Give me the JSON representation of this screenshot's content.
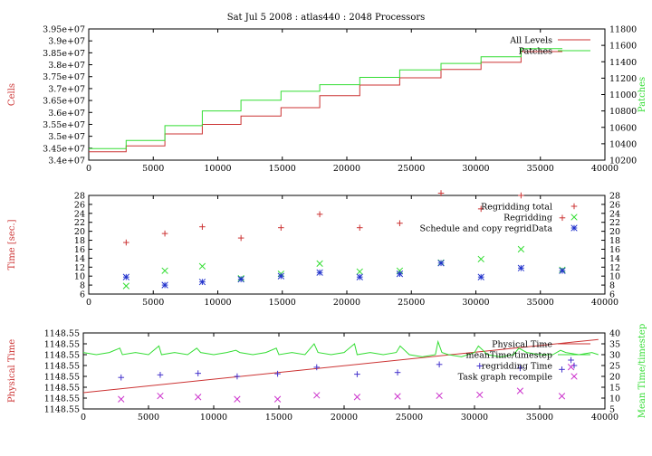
{
  "title": "Sat Jul 5 2008 : atlas440 : 2048 Processors",
  "colors": {
    "red": "#cc3333",
    "green": "#33dd33",
    "blue": "#2233cc",
    "magenta": "#cc33cc",
    "purple": "#4433cc",
    "grid": "#888888"
  },
  "chart_data": [
    {
      "type": "line",
      "id": "cells",
      "xlim": [
        0,
        40000
      ],
      "xticks": [
        0,
        5000,
        10000,
        15000,
        20000,
        25000,
        30000,
        35000,
        40000
      ],
      "ylabel": "Cells",
      "ylim": [
        34000000,
        39500000
      ],
      "yticks": [
        "3.4e+07",
        "3.45e+07",
        "3.5e+07",
        "3.55e+07",
        "3.6e+07",
        "3.65e+07",
        "3.7e+07",
        "3.75e+07",
        "3.8e+07",
        "3.85e+07",
        "3.9e+07",
        "3.95e+07"
      ],
      "y2label": "Patches",
      "y2lim": [
        10200,
        11800
      ],
      "y2ticks": [
        10200,
        10400,
        10600,
        10800,
        11000,
        11200,
        11400,
        11600,
        11800
      ],
      "legend_position": "top-right",
      "series": [
        {
          "name": "All Levels",
          "color": "red",
          "axis": "y",
          "x": [
            0,
            2900,
            2900,
            5900,
            5900,
            8800,
            8800,
            11800,
            11800,
            14900,
            14900,
            17900,
            17900,
            21000,
            21000,
            24100,
            24100,
            27300,
            27300,
            30400,
            30400,
            33500,
            33500,
            36700
          ],
          "values": [
            34350000,
            34350000,
            34600000,
            34600000,
            35100000,
            35100000,
            35500000,
            35500000,
            35850000,
            35850000,
            36200000,
            36200000,
            36700000,
            36700000,
            37150000,
            37150000,
            37450000,
            37450000,
            37800000,
            37800000,
            38100000,
            38100000,
            38550000,
            38550000
          ]
        },
        {
          "name": "Patches",
          "color": "green",
          "axis": "y2",
          "x": [
            0,
            2900,
            2900,
            5900,
            5900,
            8800,
            8800,
            11800,
            11800,
            14900,
            14900,
            17900,
            17900,
            21000,
            21000,
            24100,
            24100,
            27300,
            27300,
            30400,
            30400,
            33500,
            33500,
            36700
          ],
          "values": [
            10340,
            10340,
            10440,
            10440,
            10620,
            10620,
            10800,
            10800,
            10930,
            10930,
            11040,
            11040,
            11120,
            11120,
            11210,
            11210,
            11300,
            11300,
            11380,
            11380,
            11460,
            11460,
            11560,
            11560
          ]
        }
      ]
    },
    {
      "type": "scatter",
      "id": "regrid",
      "xlim": [
        0,
        40000
      ],
      "xticks": [
        0,
        5000,
        10000,
        15000,
        20000,
        25000,
        30000,
        35000,
        40000
      ],
      "ylabel": "Time [sec.]",
      "ylim": [
        6,
        28
      ],
      "yticks": [
        6,
        8,
        10,
        12,
        14,
        16,
        18,
        20,
        22,
        24,
        26,
        28
      ],
      "y2ticks": [
        6,
        8,
        10,
        12,
        14,
        16,
        18,
        20,
        22,
        24,
        26,
        28
      ],
      "legend_position": "top-right",
      "series": [
        {
          "name": "Regridding total",
          "color": "red",
          "marker": "+",
          "x": [
            2900,
            5900,
            8800,
            11800,
            14900,
            17900,
            21000,
            24100,
            27300,
            30400,
            33500,
            36700
          ],
          "values": [
            17.5,
            19.5,
            21,
            18.5,
            20.8,
            23.8,
            20.8,
            21.8,
            28.5,
            25,
            28,
            23
          ]
        },
        {
          "name": "Regridding",
          "color": "green",
          "marker": "x",
          "x": [
            2900,
            5900,
            8800,
            11800,
            14900,
            17900,
            21000,
            24100,
            27300,
            30400,
            33500,
            36700
          ],
          "values": [
            7.8,
            11.2,
            12.2,
            9.5,
            10.5,
            12.8,
            11,
            11.2,
            13,
            13.8,
            16,
            11.4
          ]
        },
        {
          "name": "Schedule and copy regridData",
          "color": "blue",
          "marker": "*",
          "x": [
            2900,
            5900,
            8800,
            11800,
            14900,
            17900,
            21000,
            24100,
            27300,
            30400,
            33500,
            36700
          ],
          "values": [
            9.8,
            8,
            8.7,
            9.3,
            10,
            10.8,
            9.8,
            10.5,
            12.9,
            9.8,
            11.8,
            11.2
          ]
        }
      ]
    },
    {
      "type": "line",
      "id": "physical",
      "xlim": [
        0,
        40000
      ],
      "xticks": [
        0,
        5000,
        10000,
        15000,
        20000,
        25000,
        30000,
        35000,
        40000
      ],
      "ylabel": "Physical Time",
      "ylim": [
        0,
        7
      ],
      "yticks": [
        "1148.55",
        "1148.55",
        "1148.55",
        "1148.55",
        "1148.55",
        "1148.55",
        "1148.55",
        "1148.55"
      ],
      "y2label": "Mean Time/timestep",
      "y2lim": [
        5,
        40
      ],
      "y2ticks": [
        5,
        10,
        15,
        20,
        25,
        30,
        35,
        40
      ],
      "legend_position": "top-right",
      "series": [
        {
          "name": "Physical Time",
          "color": "red",
          "axis": "y2",
          "x": [
            0,
            39500
          ],
          "values": [
            12.5,
            37
          ]
        },
        {
          "name": "meanTime/timestep",
          "color": "green",
          "axis": "y2",
          "x": [
            0,
            1000,
            2000,
            2800,
            3000,
            4000,
            5000,
            5800,
            6000,
            7000,
            8000,
            8700,
            9000,
            10000,
            11000,
            11700,
            12000,
            13000,
            14000,
            14800,
            15000,
            16000,
            17000,
            17700,
            18000,
            19000,
            20000,
            20800,
            21000,
            22000,
            23000,
            24000,
            24300,
            25000,
            26000,
            27000,
            27200,
            27500,
            28000,
            29000,
            30000,
            30300,
            31000,
            32000,
            33000,
            33400,
            34000,
            35000,
            36000,
            36600,
            37000,
            38000,
            39000,
            39500
          ],
          "values": [
            31,
            30,
            31,
            33,
            30,
            31,
            30,
            34,
            30,
            31,
            30,
            33,
            31,
            30,
            31,
            32,
            31,
            30,
            31,
            33,
            30,
            31,
            30,
            35,
            31,
            30,
            31,
            35,
            30,
            31,
            30,
            31,
            34,
            30,
            29,
            30,
            36,
            31,
            30,
            29,
            31,
            34,
            30,
            29,
            30,
            33,
            31,
            30,
            30,
            32,
            31,
            30,
            31,
            30
          ]
        },
        {
          "name": "regridding Time",
          "color": "purple",
          "marker": "+",
          "axis": "y2",
          "x": [
            2900,
            5900,
            8800,
            11800,
            14900,
            17900,
            21000,
            24100,
            27300,
            30400,
            33500,
            36700,
            37400
          ],
          "values": [
            19.5,
            20.7,
            21.4,
            20,
            21.2,
            24.2,
            21,
            21.8,
            25.5,
            24.8,
            23.8,
            23.2,
            27.5
          ]
        },
        {
          "name": "Task graph recompile",
          "color": "magenta",
          "marker": "x",
          "axis": "y2",
          "x": [
            2900,
            5900,
            8800,
            11800,
            14900,
            17900,
            21000,
            24100,
            27300,
            30400,
            33500,
            36700,
            37400
          ],
          "values": [
            9.5,
            11,
            10.5,
            9.5,
            9.5,
            11.3,
            10.5,
            10.8,
            11.1,
            11.5,
            13.3,
            10.9,
            24.3
          ]
        }
      ]
    }
  ]
}
